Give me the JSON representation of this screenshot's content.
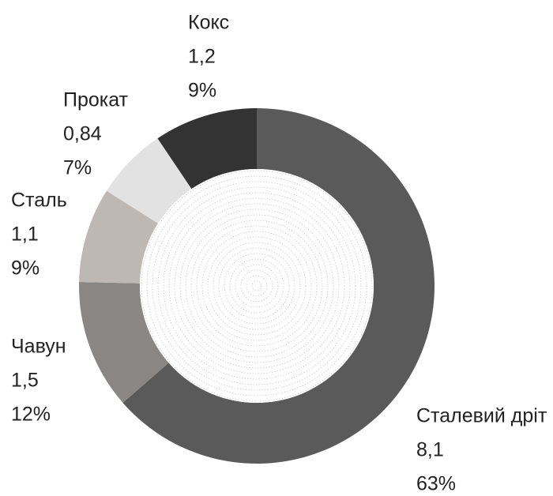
{
  "chart_data": {
    "type": "donut",
    "categories": [
      "Сталевий дріт",
      "Чавун",
      "Сталь",
      "Прокат",
      "Кокс"
    ],
    "values": [
      8.1,
      1.5,
      1.1,
      0.84,
      1.2
    ],
    "value_labels": [
      "8,1",
      "1,5",
      "1,1",
      "0,84",
      "1,2"
    ],
    "percentages": [
      63,
      12,
      9,
      7,
      9
    ],
    "percentage_labels": [
      "63%",
      "12%",
      "9%",
      "7%",
      "9%"
    ],
    "colors": [
      "#5a5a5a",
      "#8a8684",
      "#bdb8b4",
      "#e2e2e2",
      "#333333"
    ]
  }
}
